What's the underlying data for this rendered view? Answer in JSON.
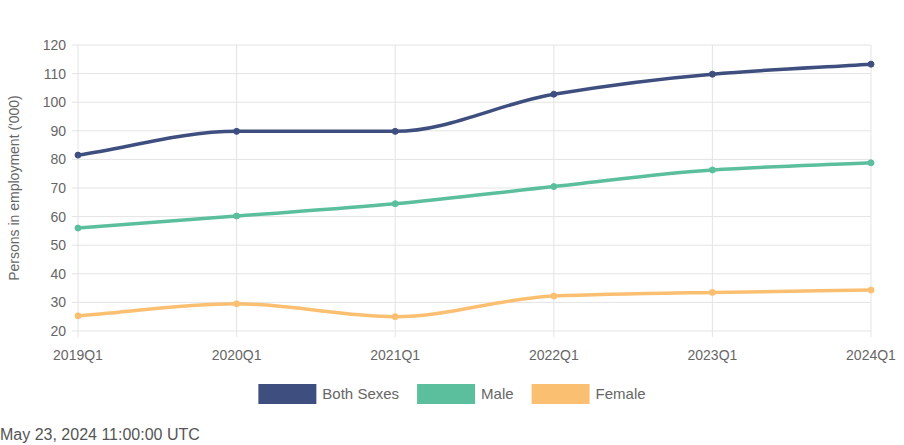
{
  "chart_data": {
    "type": "line",
    "y_label": "Persons in employment ('000)",
    "footnote": "May 23, 2024 11:00:00 UTC",
    "categories": [
      "2019Q1",
      "2020Q1",
      "2021Q1",
      "2022Q1",
      "2023Q1",
      "2024Q1"
    ],
    "series": [
      {
        "name": "Both Sexes",
        "color": "#3e4f7f",
        "values": [
          81.5,
          89.8,
          89.8,
          102.8,
          109.8,
          113.3
        ]
      },
      {
        "name": "Male",
        "color": "#5bbf9e",
        "values": [
          56,
          60.2,
          64.5,
          70.5,
          76.3,
          78.8
        ]
      },
      {
        "name": "Female",
        "color": "#fbbf72",
        "values": [
          25.3,
          29.5,
          25,
          32.2,
          33.5,
          34.3
        ]
      }
    ],
    "ylim": [
      20,
      120
    ],
    "yticks": [
      20,
      30,
      40,
      50,
      60,
      70,
      80,
      90,
      100,
      110,
      120
    ],
    "grid": true,
    "legend": "bottom",
    "marker": "circle",
    "line_style": "solid"
  }
}
